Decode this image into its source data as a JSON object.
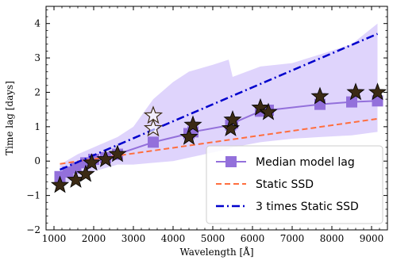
{
  "chart_data": {
    "type": "line",
    "xlabel": "Wavelength [Å]",
    "ylabel": "Time lag [days]",
    "xlim": [
      800,
      9400
    ],
    "ylim": [
      -2,
      4.5
    ],
    "xticks": [
      1000,
      2000,
      3000,
      4000,
      5000,
      6000,
      7000,
      8000,
      9000
    ],
    "yticks": [
      -2,
      -1,
      0,
      1,
      2,
      3,
      4
    ],
    "grid": false,
    "legend_position": "lower-right",
    "colors": {
      "median": "#9370db",
      "band": "#d9ccfb",
      "static_ssd": "#ff6e3e",
      "times3": "#0000cc",
      "star_fill": "#3b2a14",
      "star_edge": "#000000"
    },
    "series": [
      {
        "name": "Median model lag",
        "style": "solid-line-with-squares",
        "x": [
          1150,
          1350,
          1550,
          1800,
          2000,
          2300,
          2600,
          3500,
          4400,
          4500,
          5450,
          5500,
          6200,
          6400,
          7700,
          8500,
          9150
        ],
        "y": [
          -0.45,
          -0.32,
          -0.2,
          -0.05,
          0.05,
          0.1,
          0.2,
          0.55,
          0.8,
          0.85,
          1.05,
          1.1,
          1.45,
          1.48,
          1.65,
          1.72,
          1.75
        ],
        "band_x": [
          1150,
          1600,
          2000,
          2600,
          3000,
          3500,
          4000,
          4400,
          5000,
          5400,
          5500,
          6200,
          7000,
          7700,
          8500,
          9150
        ],
        "band_upper": [
          -0.1,
          0.2,
          0.4,
          0.7,
          1.0,
          1.8,
          2.3,
          2.6,
          2.8,
          2.95,
          2.45,
          2.75,
          2.85,
          3.1,
          3.4,
          4.0
        ],
        "band_lower": [
          -0.7,
          -0.5,
          -0.3,
          -0.1,
          -0.1,
          -0.05,
          0.0,
          0.1,
          0.25,
          0.35,
          0.4,
          0.55,
          0.65,
          0.7,
          0.75,
          0.85
        ]
      },
      {
        "name": "Static SSD",
        "style": "dashed",
        "x": [
          1150,
          9150
        ],
        "y": [
          -0.08,
          1.23
        ]
      },
      {
        "name": "3 times Static SSD",
        "style": "dash-dot",
        "x": [
          1150,
          9150
        ],
        "y": [
          -0.25,
          3.7
        ]
      },
      {
        "style": "star-markers",
        "x": [
          1150,
          1550,
          1800,
          1950,
          2300,
          2600,
          4400,
          4500,
          5450,
          5500,
          6200,
          6400,
          7700,
          8600,
          9150
        ],
        "y": [
          -0.7,
          -0.55,
          -0.38,
          -0.05,
          0.05,
          0.2,
          0.7,
          1.05,
          0.95,
          1.2,
          1.55,
          1.42,
          1.88,
          2.0,
          2.0
        ]
      },
      {
        "style": "hollow-star-markers",
        "x": [
          3500,
          3500
        ],
        "y": [
          1.32,
          0.95
        ]
      }
    ],
    "legend": [
      {
        "label": "Median model lag"
      },
      {
        "label": "Static SSD"
      },
      {
        "label": "3 times Static SSD"
      }
    ]
  }
}
